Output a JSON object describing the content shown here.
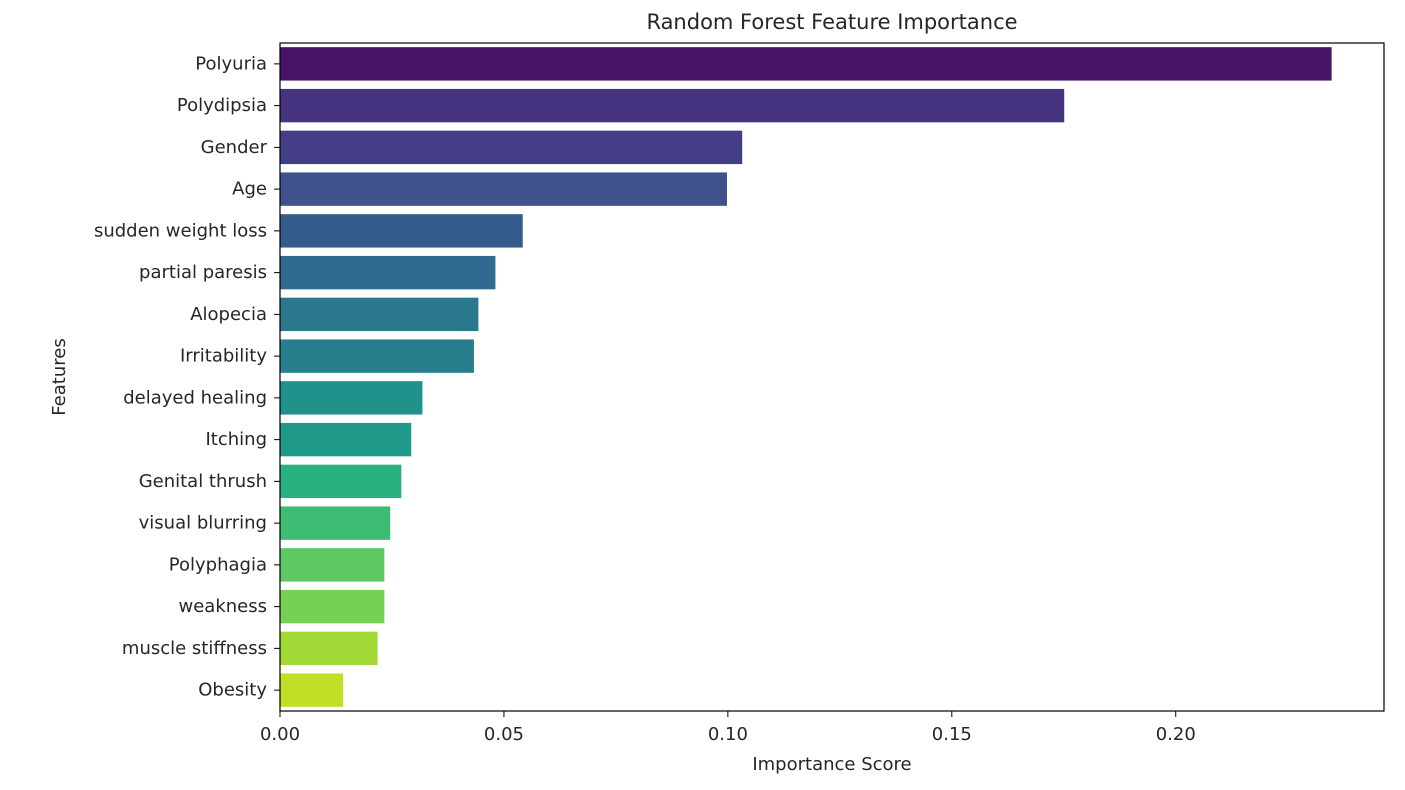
{
  "chart_data": {
    "type": "bar",
    "orientation": "horizontal",
    "title": "Random Forest Feature Importance",
    "xlabel": "Importance Score",
    "ylabel": "Features",
    "xlim": [
      0,
      0.2465
    ],
    "xticks": [
      0.0,
      0.05,
      0.1,
      0.15,
      0.2
    ],
    "xtick_labels": [
      "0.00",
      "0.05",
      "0.10",
      "0.15",
      "0.20"
    ],
    "grid": false,
    "legend": "none",
    "categories": [
      "Polyuria",
      "Polydipsia",
      "Gender",
      "Age",
      "sudden weight loss",
      "partial paresis",
      "Alopecia",
      "Irritability",
      "delayed healing",
      "Itching",
      "Genital thrush",
      "visual blurring",
      "Polyphagia",
      "weakness",
      "muscle stiffness",
      "Obesity"
    ],
    "values": [
      0.2348,
      0.1751,
      0.1032,
      0.0998,
      0.0542,
      0.0481,
      0.0443,
      0.0433,
      0.0318,
      0.0293,
      0.0271,
      0.0246,
      0.0233,
      0.0233,
      0.0218,
      0.0141
    ],
    "colors": [
      "#471365",
      "#463480",
      "#433e85",
      "#3f528d",
      "#365c8d",
      "#2f6b8e",
      "#2a788e",
      "#277f8e",
      "#21918c",
      "#1f9a8a",
      "#2ab07f",
      "#3fbc73",
      "#5ec962",
      "#75d054",
      "#a2da37",
      "#c0df25"
    ]
  }
}
